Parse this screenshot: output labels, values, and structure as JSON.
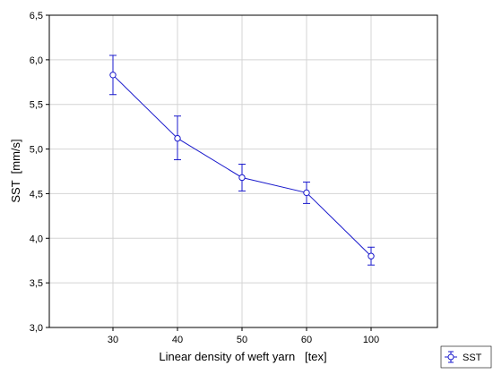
{
  "chart_data": {
    "type": "line",
    "title": "",
    "xlabel": "Linear density of weft yarn   [tex]",
    "ylabel": "SST  [mm/s]",
    "categories": [
      "30",
      "40",
      "50",
      "60",
      "100"
    ],
    "ylim": [
      3.0,
      6.5
    ],
    "yticks": [
      "3,0",
      "3,5",
      "4,0",
      "4,5",
      "5,0",
      "5,5",
      "6,0",
      "6,5"
    ],
    "grid": true,
    "legend_position": "bottom-right",
    "series": [
      {
        "name": "SST",
        "color": "#1a1acc",
        "values": [
          5.83,
          5.12,
          4.68,
          4.51,
          3.8
        ],
        "error_low": [
          5.61,
          4.88,
          4.53,
          4.39,
          3.7
        ],
        "error_high": [
          6.05,
          5.37,
          4.83,
          4.63,
          3.9
        ]
      }
    ]
  }
}
